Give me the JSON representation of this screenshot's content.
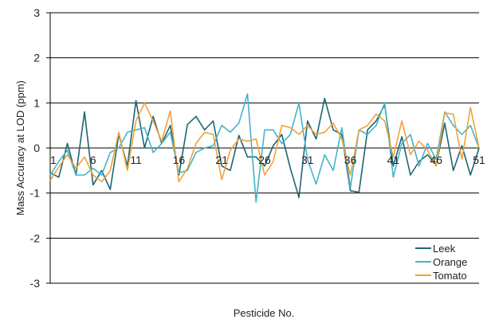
{
  "chart_data": {
    "type": "line",
    "title": "",
    "xlabel": "Pesticide No.",
    "ylabel": "Mass Accuracy at LOD (ppm)",
    "ylim": [
      -3,
      3
    ],
    "yticks": [
      3,
      2,
      1,
      0,
      -1,
      -2,
      -3
    ],
    "xlim": [
      1,
      51
    ],
    "xticks": [
      1,
      6,
      11,
      16,
      21,
      26,
      31,
      36,
      41,
      46,
      51
    ],
    "grid": "horizontal",
    "legend_position": "bottom-right",
    "x": [
      1,
      2,
      3,
      4,
      5,
      6,
      7,
      8,
      9,
      10,
      11,
      12,
      13,
      14,
      15,
      16,
      17,
      18,
      19,
      20,
      21,
      22,
      23,
      24,
      25,
      26,
      27,
      28,
      29,
      30,
      31,
      32,
      33,
      34,
      35,
      36,
      37,
      38,
      39,
      40,
      41,
      42,
      43,
      44,
      45,
      46,
      47,
      48,
      49,
      50,
      51
    ],
    "series": [
      {
        "name": "Leek",
        "color": "#1d6673",
        "values": [
          -0.55,
          -0.65,
          0.1,
          -0.6,
          0.8,
          -0.82,
          -0.5,
          -0.92,
          0.3,
          -0.4,
          1.05,
          0.0,
          0.7,
          0.1,
          0.5,
          -0.6,
          0.52,
          0.7,
          0.4,
          0.6,
          -0.4,
          -0.5,
          0.28,
          -0.2,
          -0.2,
          -0.4,
          0.05,
          0.3,
          -0.45,
          -1.1,
          0.6,
          0.2,
          1.1,
          0.4,
          0.3,
          -0.95,
          -0.98,
          0.4,
          0.6,
          0.95,
          -0.4,
          0.25,
          -0.6,
          -0.3,
          -0.15,
          -0.38,
          0.55,
          -0.5,
          0.05,
          -0.6,
          0.0
        ]
      },
      {
        "name": "Orange",
        "color": "#44b4cb",
        "values": [
          -0.6,
          -0.3,
          -0.05,
          -0.6,
          -0.6,
          -0.45,
          -0.6,
          -0.1,
          0.0,
          0.35,
          0.4,
          0.45,
          -0.1,
          0.1,
          0.35,
          -0.55,
          -0.5,
          -0.1,
          0.0,
          0.05,
          0.5,
          0.35,
          0.55,
          1.2,
          -1.2,
          0.4,
          0.4,
          0.1,
          0.3,
          1.0,
          -0.25,
          -0.8,
          -0.15,
          -0.5,
          0.45,
          -0.88,
          0.4,
          0.3,
          0.5,
          1.0,
          -0.65,
          0.1,
          0.3,
          -0.4,
          0.1,
          -0.25,
          0.8,
          0.5,
          0.3,
          0.5,
          0.0
        ]
      },
      {
        "name": "Tomato",
        "color": "#f0a23a",
        "values": [
          -0.72,
          -0.42,
          -0.15,
          -0.45,
          -0.2,
          -0.6,
          -0.75,
          -0.5,
          0.35,
          -0.5,
          0.6,
          1.0,
          0.6,
          0.15,
          0.82,
          -0.75,
          -0.45,
          0.1,
          0.35,
          0.3,
          -0.7,
          -0.05,
          0.2,
          0.15,
          0.2,
          -0.6,
          -0.3,
          0.5,
          0.45,
          0.3,
          0.5,
          0.3,
          0.35,
          0.55,
          0.2,
          -0.6,
          0.4,
          0.5,
          0.75,
          0.6,
          -0.2,
          0.6,
          -0.15,
          0.15,
          -0.05,
          -0.4,
          0.78,
          0.75,
          -0.25,
          0.9,
          0.0
        ]
      }
    ]
  }
}
